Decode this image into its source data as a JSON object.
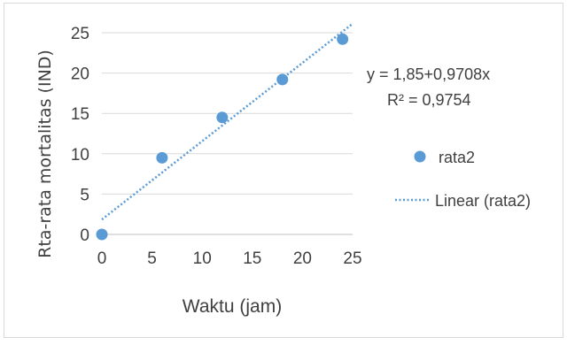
{
  "chart_data": {
    "type": "scatter",
    "xlabel": "Waktu (jam)",
    "ylabel": "Rta-rata mortalitas (IND)",
    "xlim": [
      0,
      25
    ],
    "ylim": [
      0,
      25
    ],
    "x_ticks": [
      0,
      5,
      10,
      15,
      20,
      25
    ],
    "y_ticks": [
      0,
      5,
      10,
      15,
      20,
      25
    ],
    "grid": "horizontal",
    "series": [
      {
        "name": "rata2",
        "color": "#5b9bd5",
        "x": [
          0,
          6,
          12,
          18,
          24
        ],
        "y": [
          0,
          9.5,
          14.5,
          19.2,
          24.2
        ]
      }
    ],
    "trendline": {
      "name": "Linear (rata2)",
      "style": "dotted",
      "color": "#5b9bd5",
      "intercept": 1.85,
      "slope": 0.9708,
      "equation": "y = 1,85+0,9708x",
      "r2_label": "R² = 0,9754"
    },
    "legend_position": "right"
  }
}
